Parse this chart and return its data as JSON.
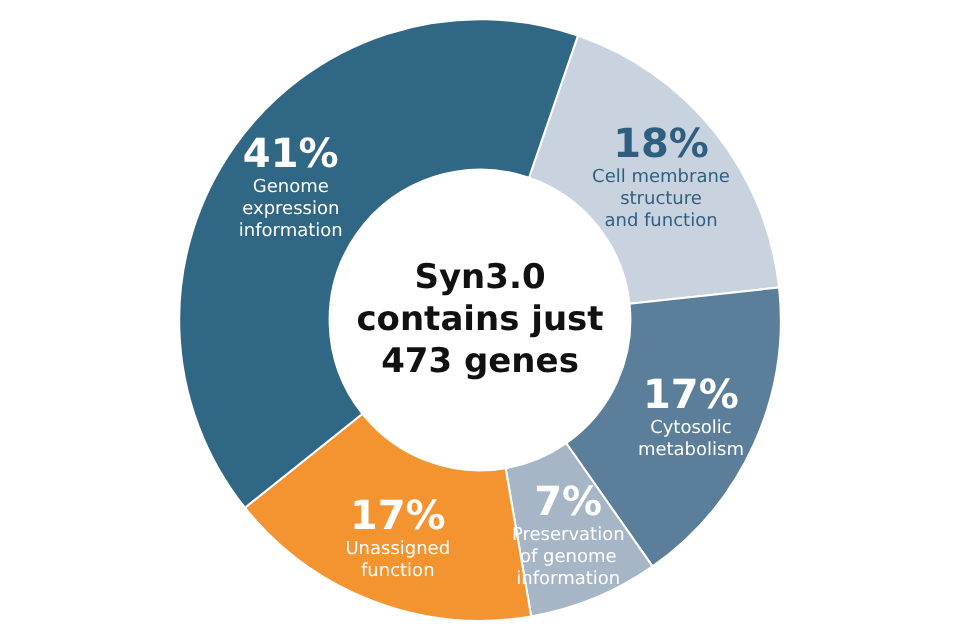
{
  "chart_data": {
    "type": "donut",
    "title": "Syn3.0\ncontains just\n473 genes",
    "categories": [
      "Cell membrane\nstructure\nand function",
      "Cytosolic\nmetabolism",
      "Preservation\nof genome\ninformation",
      "Unassigned\nfunction",
      "Genome\nexpression\ninformation"
    ],
    "values": [
      18,
      17,
      7,
      17,
      41
    ],
    "colors": [
      "#c9d3df",
      "#5b7f9a",
      "#a7b6c6",
      "#f39431",
      "#306784"
    ],
    "value_labels": [
      "18%",
      "17%",
      "7%",
      "17%",
      "41%"
    ],
    "legend": false
  }
}
